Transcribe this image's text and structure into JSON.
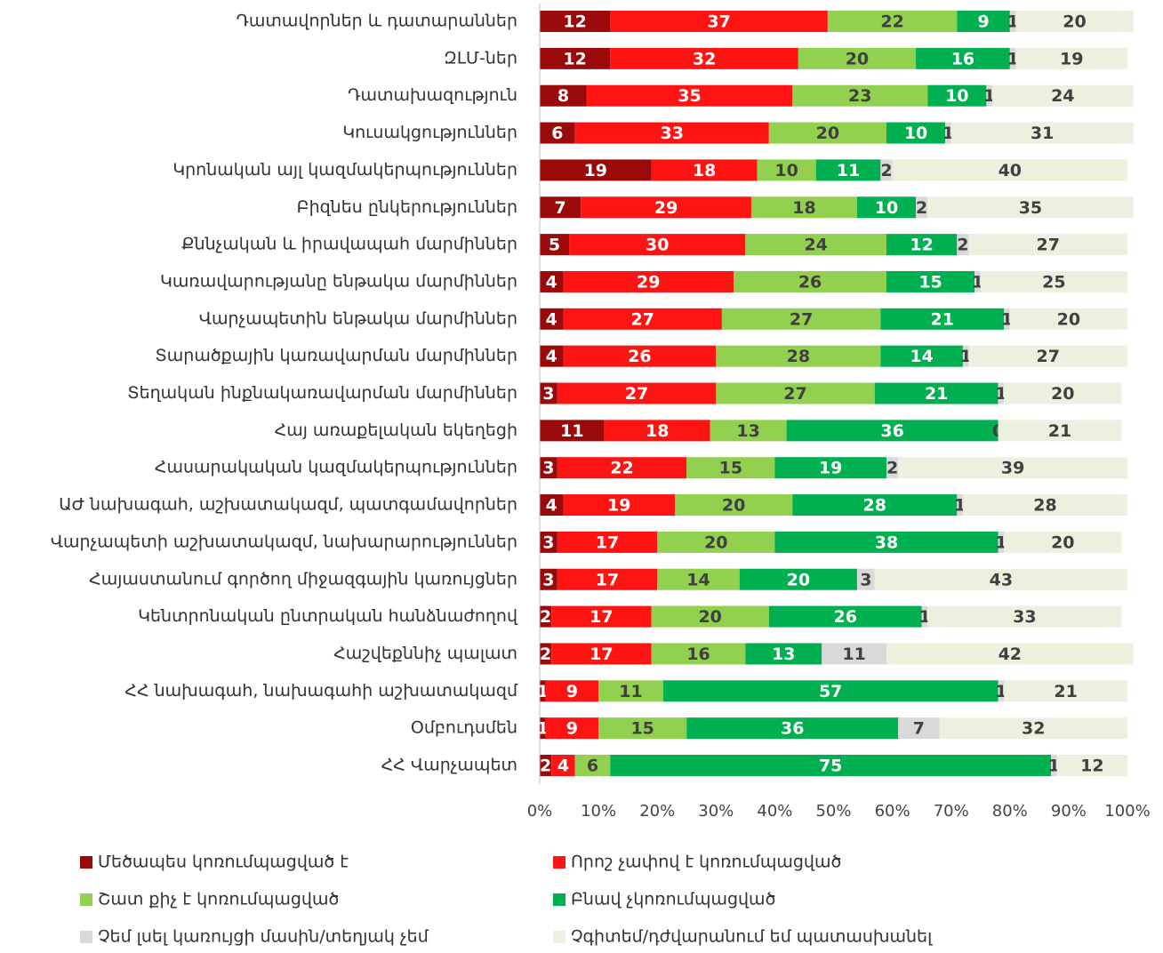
{
  "chart_data": {
    "type": "stacked_barh",
    "categories": [
      "Դատավորներ և դատարաններ",
      "ԶԼՄ-ներ",
      "Դատախազություն",
      "Կուսակցություններ",
      "Կրոնական այլ կազմակերպություններ",
      "Բիզնես ընկերություններ",
      "Քննչական և իրավապահ մարմիններ",
      "Կառավարությանը ենթակա մարմիններ",
      "Վարչապետին ենթակա մարմիններ",
      "Տարածքային կառավարման մարմիններ",
      "Տեղական ինքնակառավարման մարմիններ",
      "Հայ առաքելական եկեղեցի",
      "Հասարակական կազմակերպություններ",
      "ԱԺ նախագահ, աշխատակազմ, պատգամավորներ",
      "Վարչապետի աշխատակազմ, նախարարություններ",
      "Հայաստանում գործող միջազգային կառույցներ",
      "Կենտրոնական ընտրական հանձնաժողով",
      "Հաշվեքննիչ պալատ",
      "ՀՀ նախագահ, նախագահի աշխատակազմ",
      "Օմբուդսմեն",
      "ՀՀ Վարչապետ"
    ],
    "series": [
      {
        "name": "Մեծապես կոռումպացված է",
        "color": "#9b0a0a",
        "values": [
          12,
          12,
          8,
          6,
          19,
          7,
          5,
          4,
          4,
          4,
          3,
          11,
          3,
          4,
          3,
          3,
          2,
          2,
          1,
          1,
          2
        ]
      },
      {
        "name": "Որոշ չափով է կոռումպացված",
        "color": "#ff1414",
        "values": [
          37,
          32,
          35,
          33,
          18,
          29,
          30,
          29,
          27,
          26,
          27,
          18,
          22,
          19,
          17,
          17,
          17,
          17,
          9,
          9,
          4
        ]
      },
      {
        "name": "Շատ քիչ է կոռումպացված",
        "color": "#92d050",
        "values": [
          22,
          20,
          23,
          20,
          10,
          18,
          24,
          26,
          27,
          28,
          27,
          13,
          15,
          20,
          20,
          14,
          20,
          16,
          11,
          15,
          6
        ]
      },
      {
        "name": "Բնավ չկոռումպացված",
        "color": "#00b050",
        "values": [
          9,
          16,
          10,
          10,
          11,
          10,
          12,
          15,
          21,
          14,
          21,
          36,
          19,
          28,
          38,
          20,
          26,
          13,
          57,
          36,
          75
        ]
      },
      {
        "name": "Չեմ լսել կառույցի մասին/տեղյակ չեմ",
        "color": "#d9d9d9",
        "values": [
          1,
          1,
          1,
          1,
          2,
          2,
          2,
          1,
          1,
          1,
          1,
          0,
          2,
          1,
          1,
          3,
          1,
          11,
          1,
          7,
          1
        ]
      },
      {
        "name": "Չգիտեմ/դժվարանում եմ պատասխանել",
        "color": "#ebf1de",
        "values": [
          20,
          19,
          24,
          31,
          40,
          35,
          27,
          25,
          20,
          27,
          20,
          21,
          39,
          28,
          20,
          43,
          33,
          42,
          21,
          32,
          12
        ]
      }
    ],
    "xlim": [
      0,
      100
    ],
    "xticks": [
      {
        "value": 0,
        "label": "0%"
      },
      {
        "value": 10,
        "label": "10%"
      },
      {
        "value": 20,
        "label": "20%"
      },
      {
        "value": 30,
        "label": "30%"
      },
      {
        "value": 40,
        "label": "40%"
      },
      {
        "value": 50,
        "label": "50%"
      },
      {
        "value": 60,
        "label": "60%"
      },
      {
        "value": 70,
        "label": "70%"
      },
      {
        "value": 80,
        "label": "80%"
      },
      {
        "value": 90,
        "label": "90%"
      },
      {
        "value": 100,
        "label": "100%"
      }
    ]
  }
}
